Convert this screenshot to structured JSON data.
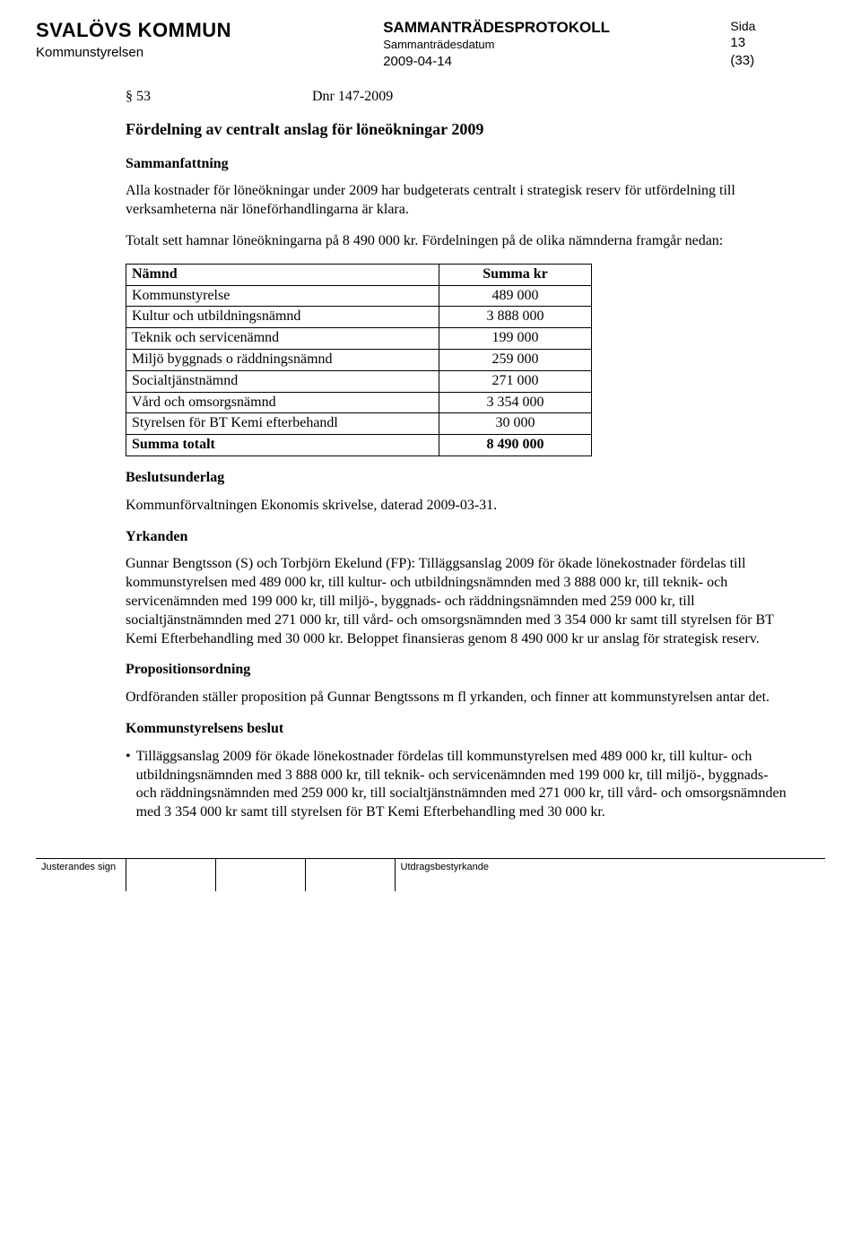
{
  "header": {
    "org_name": "SVALÖVS KOMMUN",
    "dept": "Kommunstyrelsen",
    "doc_type": "SAMMANTRÄDESPROTOKOLL",
    "meeting_date_label": "Sammanträdesdatum",
    "doc_date": "2009-04-14",
    "sida_label": "Sida",
    "page_num": "13",
    "page_total": "(33)"
  },
  "section": {
    "paragraph_ref": "§ 53",
    "dnr": "Dnr 147-2009"
  },
  "title": "Fördelning av centralt anslag för löneökningar 2009",
  "headings": {
    "summary": "Sammanfattning",
    "basis": "Beslutsunderlag",
    "motions": "Yrkanden",
    "prop": "Propositionsordning",
    "decision": "Kommunstyrelsens beslut"
  },
  "paragraphs": {
    "p1": "Alla kostnader för löneökningar under 2009 har budgeterats centralt i strategisk reserv för utfördelning till verksamheterna när löneförhandlingarna är klara.",
    "p2": "Totalt sett hamnar löneökningarna på 8 490 000 kr. Fördelningen på de olika nämnderna framgår nedan:",
    "p3": "Kommunförvaltningen Ekonomis skrivelse, daterad 2009-03-31.",
    "p4": "Gunnar Bengtsson (S) och Torbjörn Ekelund (FP): Tilläggsanslag 2009 för ökade lönekostnader fördelas till kommunstyrelsen med  489 000 kr, till kultur- och utbildningsnämnden med 3 888 000 kr, till teknik- och servicenämnden med 199 000 kr, till miljö-, byggnads- och räddningsnämnden med 259 000 kr, till socialtjänstnämnden med 271 000 kr, till vård- och omsorgsnämnden med 3 354 000 kr samt till styrelsen för BT Kemi Efterbehandling med 30 000 kr. Beloppet finansieras genom 8 490 000 kr ur anslag för strategisk reserv.",
    "p5": "Ordföranden ställer proposition på Gunnar Bengtssons m fl yrkanden, och finner att kommunstyrelsen antar det.",
    "p6": "Tilläggsanslag 2009 för ökade lönekostnader fördelas till kommunstyrelsen med 489 000 kr, till kultur- och utbildningsnämnden med 3 888 000 kr, till teknik- och servicenämnden med 199 000 kr, till miljö-, byggnads- och räddningsnämnden med 259 000 kr, till socialtjänstnämnden med 271 000 kr, till vård- och omsorgsnämnden med 3 354 000 kr samt till styrelsen för BT Kemi Efterbehandling med 30 000 kr."
  },
  "table": {
    "head_name": "Nämnd",
    "head_value": "Summa kr",
    "rows": [
      {
        "name": "Kommunstyrelse",
        "value": "489 000"
      },
      {
        "name": "Kultur och utbildningsnämnd",
        "value": "3 888 000"
      },
      {
        "name": "Teknik och servicenämnd",
        "value": "199 000"
      },
      {
        "name": "Miljö byggnads o räddningsnämnd",
        "value": "259 000"
      },
      {
        "name": "Socialtjänstnämnd",
        "value": "271 000"
      },
      {
        "name": "Vård och omsorgsnämnd",
        "value": "3 354 000"
      },
      {
        "name": "Styrelsen för BT Kemi efterbehandl",
        "value": "30 000"
      }
    ],
    "total_name": "Summa totalt",
    "total_value": "8 490 000"
  },
  "footer": {
    "sign_label": "Justerandes sign",
    "utd_label": "Utdragsbestyrkande"
  }
}
